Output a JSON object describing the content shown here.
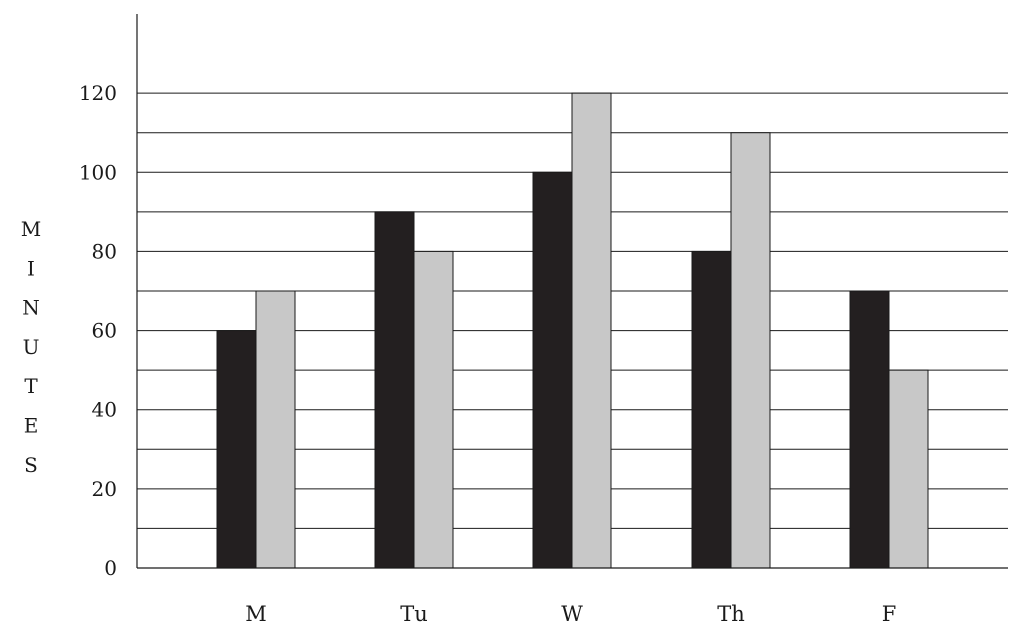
{
  "chart_data": {
    "type": "bar",
    "title": "",
    "xlabel": "",
    "ylabel": "MINUTES",
    "ylabel_letters": [
      "M",
      "I",
      "N",
      "U",
      "T",
      "E",
      "S"
    ],
    "categories": [
      "M",
      "Tu",
      "W",
      "Th",
      "F"
    ],
    "series": [
      {
        "color": "#231f20",
        "values": [
          60,
          90,
          100,
          80,
          70
        ]
      },
      {
        "color": "#c8c8c8",
        "values": [
          70,
          80,
          120,
          110,
          50
        ]
      }
    ],
    "ylim": [
      0,
      140
    ],
    "yticks": [
      0,
      20,
      40,
      60,
      80,
      100,
      120
    ],
    "ytick_labels": [
      "0",
      "20",
      "40",
      "60",
      "80",
      "100",
      "120"
    ],
    "grid_step": 10,
    "grid": true,
    "legend": "none"
  }
}
